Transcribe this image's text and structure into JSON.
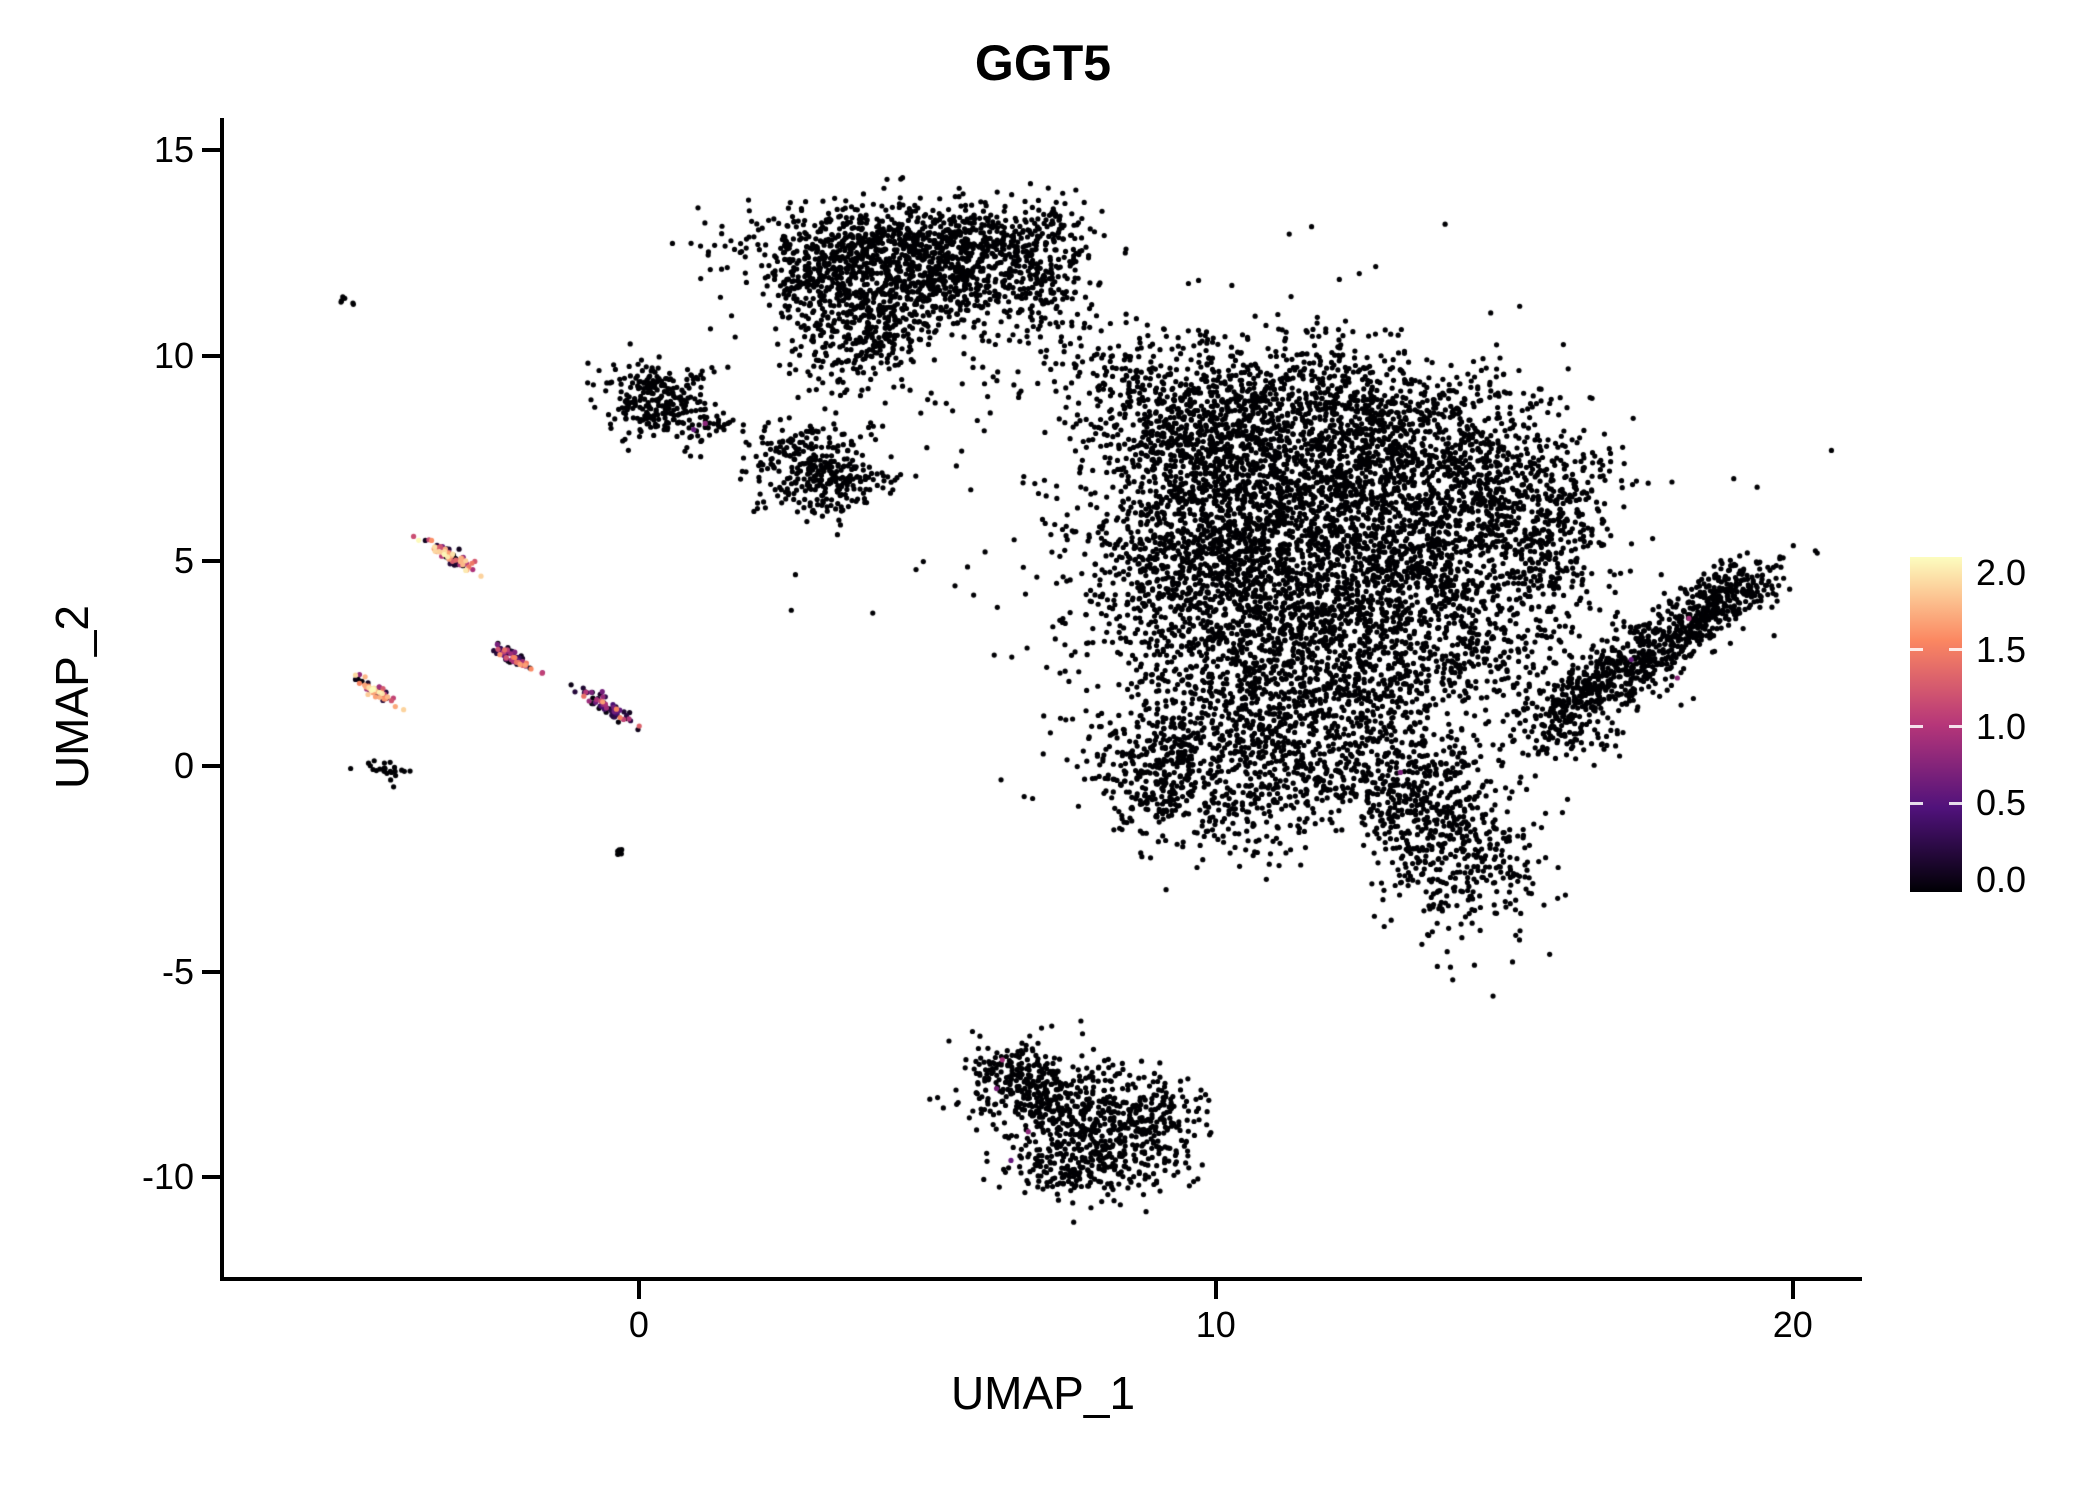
{
  "page": {
    "background": "#ffffff"
  },
  "chart_data": {
    "type": "scatter",
    "title": "GGT5",
    "xlabel": "UMAP_1",
    "ylabel": "UMAP_2",
    "xlim": [
      -7.19,
      21.2
    ],
    "ylim": [
      -12.44,
      15.79
    ],
    "xticks": [
      {
        "value": 0,
        "label": "0"
      },
      {
        "value": 10,
        "label": "10"
      },
      {
        "value": 20,
        "label": "20"
      }
    ],
    "yticks": [
      {
        "value": 15,
        "label": "15"
      },
      {
        "value": 10,
        "label": "10"
      },
      {
        "value": 5,
        "label": "5"
      },
      {
        "value": 0,
        "label": "0"
      },
      {
        "value": -5,
        "label": "-5"
      },
      {
        "value": -10,
        "label": "-10"
      }
    ],
    "grid": false,
    "legend_position": "right",
    "point_radius": 2.6,
    "point_color_zero": "#000004",
    "colorbar": {
      "vmin": 0.0,
      "vmax": 2.0,
      "tick_values": [
        2.0,
        1.5,
        1.0,
        0.5,
        0.0
      ],
      "tick_labels": [
        "2.0",
        "1.5",
        "1.0",
        "0.5",
        "0.0"
      ],
      "colormap": "magma",
      "stops": [
        [
          0,
          "#000004"
        ],
        [
          0.25,
          "#50127b"
        ],
        [
          0.5,
          "#b63679"
        ],
        [
          0.75,
          "#fb8761"
        ],
        [
          1,
          "#fcfdbf"
        ]
      ]
    },
    "clusters": [
      {
        "x": 4.2,
        "y": 12.7,
        "rx": 1.15,
        "ry": 0.55,
        "n": 550
      },
      {
        "x": 5.6,
        "y": 12.2,
        "rx": 0.9,
        "ry": 0.7,
        "n": 420
      },
      {
        "x": 3.3,
        "y": 11.9,
        "rx": 0.7,
        "ry": 0.7,
        "n": 300
      },
      {
        "x": 4.6,
        "y": 11.3,
        "rx": 1.0,
        "ry": 0.55,
        "n": 280
      },
      {
        "x": 3.9,
        "y": 10.4,
        "rx": 0.5,
        "ry": 0.45,
        "n": 130
      },
      {
        "x": 3.6,
        "y": 9.7,
        "rx": 0.5,
        "ry": 0.4,
        "n": 50
      },
      {
        "x": 6.7,
        "y": 12.9,
        "rx": 0.7,
        "ry": 0.5,
        "n": 160
      },
      {
        "x": 6.9,
        "y": 11.8,
        "rx": 0.5,
        "ry": 0.7,
        "n": 120
      },
      {
        "x": 7.3,
        "y": 10.3,
        "rx": 0.6,
        "ry": 0.5,
        "n": 45
      },
      {
        "x": 8.2,
        "y": 9.8,
        "rx": 0.5,
        "ry": 0.5,
        "n": 35
      },
      {
        "x": 5.8,
        "y": 9.2,
        "rx": 0.8,
        "ry": 0.6,
        "n": 25
      },
      {
        "x": 0.25,
        "y": 9.2,
        "rx": 0.5,
        "ry": 0.4,
        "n": 150
      },
      {
        "x": 0.45,
        "y": 8.5,
        "rx": 0.45,
        "ry": 0.4,
        "n": 120
      },
      {
        "x": 1.3,
        "y": 8.3,
        "rx": 0.3,
        "ry": 0.25,
        "n": 25
      },
      {
        "x": 3.0,
        "y": 7.4,
        "rx": 0.6,
        "ry": 0.5,
        "n": 220
      },
      {
        "x": 3.4,
        "y": 6.8,
        "rx": 0.5,
        "ry": 0.4,
        "n": 130
      },
      {
        "x": 9.4,
        "y": 8.4,
        "rx": 0.9,
        "ry": 1.0,
        "n": 450
      },
      {
        "x": 11.4,
        "y": 8.8,
        "rx": 1.4,
        "ry": 0.8,
        "n": 650
      },
      {
        "x": 13.2,
        "y": 7.9,
        "rx": 1.1,
        "ry": 0.9,
        "n": 500
      },
      {
        "x": 10.3,
        "y": 6.6,
        "rx": 1.3,
        "ry": 1.1,
        "n": 750
      },
      {
        "x": 12.6,
        "y": 6.1,
        "rx": 1.4,
        "ry": 1.2,
        "n": 800
      },
      {
        "x": 9.6,
        "y": 4.6,
        "rx": 1.1,
        "ry": 1.1,
        "n": 600
      },
      {
        "x": 11.6,
        "y": 4.1,
        "rx": 1.4,
        "ry": 1.2,
        "n": 700
      },
      {
        "x": 13.9,
        "y": 4.6,
        "rx": 0.9,
        "ry": 1.0,
        "n": 380
      },
      {
        "x": 10.6,
        "y": 2.1,
        "rx": 1.2,
        "ry": 1.1,
        "n": 480
      },
      {
        "x": 12.6,
        "y": 2.2,
        "rx": 1.1,
        "ry": 0.9,
        "n": 380
      },
      {
        "x": 9.7,
        "y": 0.4,
        "rx": 1.1,
        "ry": 0.9,
        "n": 380
      },
      {
        "x": 11.9,
        "y": 0.1,
        "rx": 1.1,
        "ry": 0.7,
        "n": 300
      },
      {
        "x": 14.9,
        "y": 6.9,
        "rx": 0.8,
        "ry": 1.1,
        "n": 320
      },
      {
        "x": 15.7,
        "y": 5.0,
        "rx": 0.5,
        "ry": 1.0,
        "n": 180
      },
      {
        "x": 16.0,
        "y": 6.5,
        "rx": 0.6,
        "ry": 0.8,
        "n": 120
      },
      {
        "x": 14.6,
        "y": 2.6,
        "rx": 0.9,
        "ry": 0.9,
        "n": 180
      },
      {
        "x": 13.5,
        "y": -0.4,
        "rx": 0.8,
        "ry": 0.5,
        "n": 180
      },
      {
        "x": 14.3,
        "y": -2.4,
        "rx": 0.7,
        "ry": 0.9,
        "n": 320
      },
      {
        "x": 13.6,
        "y": -1.3,
        "rx": 0.6,
        "ry": 0.5,
        "n": 130
      },
      {
        "x": 8.8,
        "y": -0.4,
        "rx": 0.5,
        "ry": 0.6,
        "n": 130
      },
      {
        "x": 10.4,
        "y": -1.4,
        "rx": 0.9,
        "ry": 0.6,
        "n": 120
      },
      {
        "x": 11.5,
        "y": 5.0,
        "rx": 3.2,
        "ry": 3.0,
        "n": 350
      },
      {
        "x": 15.9,
        "y": 0.9,
        "rx": 0.5,
        "ry": 0.4,
        "n": 100
      },
      {
        "x": 17.6,
        "y": 2.9,
        "rx": 1.1,
        "ry": 0.35,
        "n": 520,
        "a": 42
      },
      {
        "x": 18.9,
        "y": 4.2,
        "rx": 0.55,
        "ry": 0.3,
        "n": 200,
        "a": 42
      },
      {
        "x": 16.4,
        "y": 1.7,
        "rx": 0.5,
        "ry": 0.3,
        "n": 150,
        "a": 42
      },
      {
        "x": 6.6,
        "y": -7.5,
        "rx": 0.45,
        "ry": 0.4,
        "n": 140
      },
      {
        "x": 7.4,
        "y": -8.3,
        "rx": 0.8,
        "ry": 0.6,
        "n": 380
      },
      {
        "x": 8.3,
        "y": -9.2,
        "rx": 0.7,
        "ry": 0.6,
        "n": 280
      },
      {
        "x": 7.5,
        "y": -9.9,
        "rx": 0.5,
        "ry": 0.35,
        "n": 110
      },
      {
        "x": 9.0,
        "y": -8.3,
        "rx": 0.4,
        "ry": 0.3,
        "n": 60
      },
      {
        "x": -4.4,
        "y": -0.1,
        "rx": 0.18,
        "ry": 0.12,
        "n": 25
      },
      {
        "x": -5.1,
        "y": 11.4,
        "rx": 0.1,
        "ry": 0.08,
        "n": 6
      },
      {
        "x": -0.35,
        "y": -2.1,
        "rx": 0.08,
        "ry": 0.06,
        "n": 6
      },
      {
        "x": -3.3,
        "y": 5.15,
        "rx": 0.28,
        "ry": 0.07,
        "n": 70,
        "a": -42,
        "v": [
          [
            0.3,
            0,
            0.25
          ],
          [
            0.3,
            0.6,
            1.3
          ],
          [
            0.4,
            1.3,
            2.0
          ]
        ]
      },
      {
        "x": -4.55,
        "y": 1.85,
        "rx": 0.22,
        "ry": 0.06,
        "n": 55,
        "a": -42,
        "v": [
          [
            0.2,
            0,
            0.25
          ],
          [
            0.25,
            0.8,
            1.5
          ],
          [
            0.55,
            1.5,
            2.0
          ]
        ]
      },
      {
        "x": -2.15,
        "y": 2.6,
        "rx": 0.24,
        "ry": 0.06,
        "n": 60,
        "a": -42,
        "v": [
          [
            0.45,
            0,
            0.35
          ],
          [
            0.35,
            0.5,
            1.2
          ],
          [
            0.2,
            1.2,
            1.8
          ]
        ]
      },
      {
        "x": -0.6,
        "y": 1.5,
        "rx": 0.3,
        "ry": 0.07,
        "n": 75,
        "a": -42,
        "v": [
          [
            0.6,
            0,
            0.3
          ],
          [
            0.3,
            0.4,
            1.0
          ],
          [
            0.1,
            1.0,
            1.6
          ]
        ]
      }
    ],
    "accent_points": [
      [
        1.15,
        8.35,
        0.8
      ],
      [
        0.95,
        8.2,
        0.6
      ],
      [
        18.2,
        3.6,
        0.9
      ],
      [
        18.0,
        2.15,
        0.8
      ],
      [
        17.2,
        2.6,
        0.6
      ],
      [
        6.3,
        -7.15,
        0.9
      ],
      [
        6.2,
        -7.85,
        0.7
      ],
      [
        6.75,
        -8.9,
        0.8
      ],
      [
        6.45,
        -9.6,
        0.6
      ],
      [
        13.2,
        -0.15,
        0.7
      ]
    ]
  }
}
